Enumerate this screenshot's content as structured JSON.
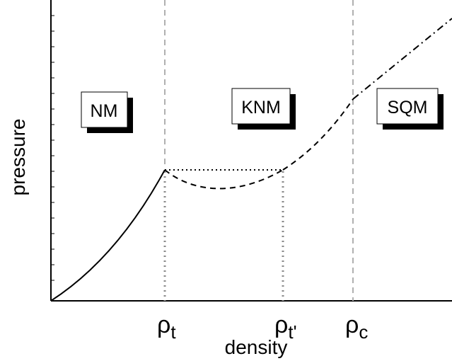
{
  "diagram": {
    "ylabel": "pressure",
    "xlabel": "density",
    "ticks": [
      {
        "symbol": "ρ",
        "sub": "t"
      },
      {
        "symbol": "ρ",
        "sub": "t'"
      },
      {
        "symbol": "ρ",
        "sub": "c"
      }
    ],
    "regions": [
      {
        "label": "NM"
      },
      {
        "label": "KNM"
      },
      {
        "label": "SQM"
      }
    ],
    "curves": {
      "nm": "solid",
      "maxwell_construction": "dotted",
      "knm": "dashed",
      "sqm": "dash-dot"
    }
  }
}
